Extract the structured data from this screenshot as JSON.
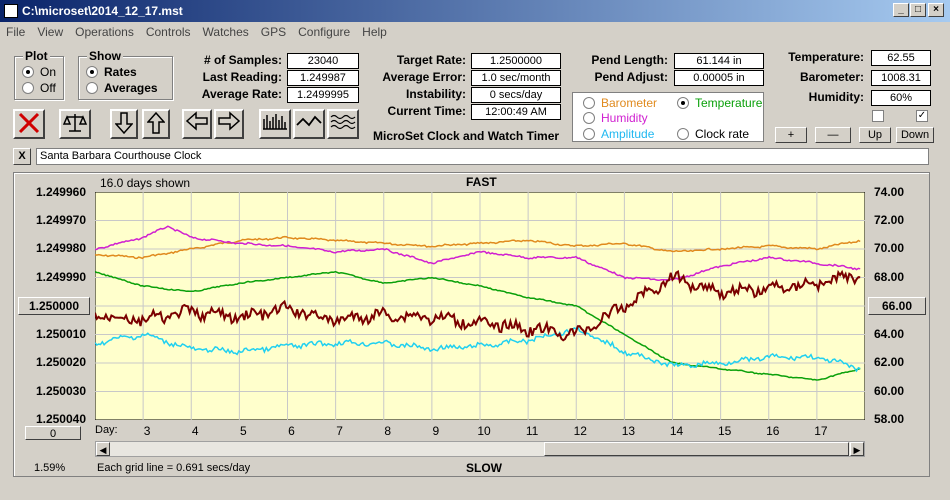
{
  "window": {
    "title": "C:\\microset\\2014_12_17.mst"
  },
  "menu": [
    "File",
    "View",
    "Operations",
    "Controls",
    "Watches",
    "GPS",
    "Configure",
    "Help"
  ],
  "plot_group": {
    "title": "Plot",
    "on_label": "On",
    "off_label": "Off",
    "selected": "On"
  },
  "show_group": {
    "title": "Show",
    "rates_label": "Rates",
    "averages_label": "Averages",
    "selected": "Rates"
  },
  "stats": {
    "samples_label": "# of Samples:",
    "samples": "23040",
    "last_label": "Last Reading:",
    "last": "1.249987",
    "avg_rate_label": "Average Rate:",
    "avg_rate": "1.2499995",
    "target_label": "Target Rate:",
    "target": "1.2500000",
    "avg_error_label": "Average Error:",
    "avg_error": "1.0 sec/month",
    "instability_label": "Instability:",
    "instability": "0 secs/day",
    "current_time_label": "Current Time:",
    "current_time": "12:00:49 AM",
    "pend_length_label": "Pend Length:",
    "pend_length": "61.144 in",
    "pend_adjust_label": "Pend Adjust:",
    "pend_adjust": "0.00005 in",
    "temperature_label": "Temperature:",
    "temperature": "62.55",
    "barometer_label": "Barometer:",
    "barometer": "1008.31",
    "humidity_label": "Humidity:",
    "humidity": "60%"
  },
  "app_caption": "MicroSet Clock and Watch Timer",
  "sensor_select": {
    "barometer": "Barometer",
    "temperature": "Temperature",
    "humidity": "Humidity",
    "amplitude": "Amplitude",
    "clock_rate": "Clock rate",
    "selected": "Temperature"
  },
  "adjust_buttons": {
    "plus": "+",
    "minus": "—",
    "up": "Up",
    "down": "Down"
  },
  "checkboxes": {
    "left_checked": false,
    "right_checked": true,
    "right_mark": "✓"
  },
  "close_x": "X",
  "clock_name": "Santa Barbara Courthouse Clock",
  "colors": {
    "barometer": "#e08a1e",
    "temperature": "#0aa00a",
    "humidity": "#d020d0",
    "amplitude": "#20d0f0",
    "rate": "#7a0000",
    "plot_bg": "#ffffcc"
  },
  "chart_labels": {
    "days_shown": "16.0 days shown",
    "fast": "FAST",
    "slow": "SLOW",
    "grid_note": "Each grid line = 0.691 secs/day",
    "percent": "1.59%",
    "zero_button": "0",
    "center_value": "1.250000",
    "right_center": "66.00",
    "day_label": "Day:"
  },
  "chart_data": {
    "type": "line",
    "left_axis": {
      "ticks": [
        "1.249960",
        "1.249970",
        "1.249980",
        "1.249990",
        "1.250000",
        "1.250010",
        "1.250020",
        "1.250030",
        "1.250040"
      ],
      "ylim": [
        1.24996,
        1.25004
      ],
      "inverted": true
    },
    "right_axis": {
      "ticks": [
        "74.00",
        "72.00",
        "70.00",
        "68.00",
        "66.00",
        "64.00",
        "62.00",
        "60.00",
        "58.00"
      ],
      "ylim": [
        58,
        74
      ]
    },
    "x_ticks": [
      "3",
      "4",
      "5",
      "6",
      "7",
      "8",
      "9",
      "10",
      "11",
      "12",
      "13",
      "14",
      "15",
      "16",
      "17"
    ],
    "xlim": [
      2.0,
      18.0
    ],
    "series": [
      {
        "key": "barometer",
        "x": [
          2.0,
          3.0,
          4.0,
          5.0,
          6.0,
          7.0,
          8.0,
          9.0,
          10.0,
          11.0,
          12.0,
          13.0,
          14.0,
          15.0,
          16.0,
          17.0,
          17.9
        ],
        "values": [
          1.249982,
          1.249983,
          1.24998,
          1.249977,
          1.249976,
          1.249977,
          1.249978,
          1.249979,
          1.249978,
          1.249977,
          1.249979,
          1.249978,
          1.249981,
          1.24998,
          1.249979,
          1.24998,
          1.249977
        ]
      },
      {
        "key": "humidity",
        "x": [
          2.0,
          3.0,
          3.5,
          4.0,
          5.0,
          6.0,
          7.0,
          8.0,
          9.0,
          10.0,
          11.0,
          12.0,
          13.0,
          14.0,
          15.0,
          16.0,
          17.0,
          17.9
        ],
        "values": [
          1.24998,
          1.249976,
          1.249972,
          1.249976,
          1.249978,
          1.249979,
          1.249981,
          1.24998,
          1.249985,
          1.249981,
          1.249983,
          1.249983,
          1.24999,
          1.249991,
          1.249986,
          1.249983,
          1.249985,
          1.249987
        ]
      },
      {
        "key": "temperature",
        "x": [
          2.0,
          3.0,
          4.0,
          5.0,
          6.0,
          7.0,
          8.0,
          9.0,
          10.0,
          11.0,
          12.0,
          13.0,
          14.0,
          15.0,
          16.0,
          17.0,
          17.9
        ],
        "values": [
          1.249988,
          1.249993,
          1.249995,
          1.249992,
          1.24999,
          1.249988,
          1.249992,
          1.24999,
          1.249993,
          1.249997,
          1.25,
          1.25001,
          1.25002,
          1.250022,
          1.250024,
          1.250026,
          1.250022
        ]
      },
      {
        "key": "amplitude",
        "x": [
          2.0,
          3.0,
          4.0,
          5.0,
          6.0,
          7.0,
          8.0,
          9.0,
          10.0,
          11.0,
          12.0,
          13.0,
          14.0,
          15.0,
          16.0,
          17.0,
          17.9
        ],
        "values": [
          1.250013,
          1.25001,
          1.250015,
          1.250016,
          1.250014,
          1.250013,
          1.250013,
          1.250015,
          1.250014,
          1.250012,
          1.250008,
          1.250016,
          1.250021,
          1.25002,
          1.250018,
          1.250018,
          1.250022
        ]
      },
      {
        "key": "rate",
        "x": [
          2.0,
          3.0,
          4.0,
          5.0,
          6.0,
          7.0,
          8.0,
          9.0,
          10.0,
          11.0,
          12.0,
          13.0,
          14.0,
          15.0,
          16.0,
          17.0,
          17.9
        ],
        "values": [
          1.250003,
          1.250005,
          1.250002,
          1.250004,
          1.250001,
          1.250005,
          1.250003,
          1.250004,
          1.250006,
          1.250008,
          1.25001,
          1.25,
          1.24999,
          1.249995,
          1.249994,
          1.249992,
          1.249989
        ]
      }
    ]
  }
}
